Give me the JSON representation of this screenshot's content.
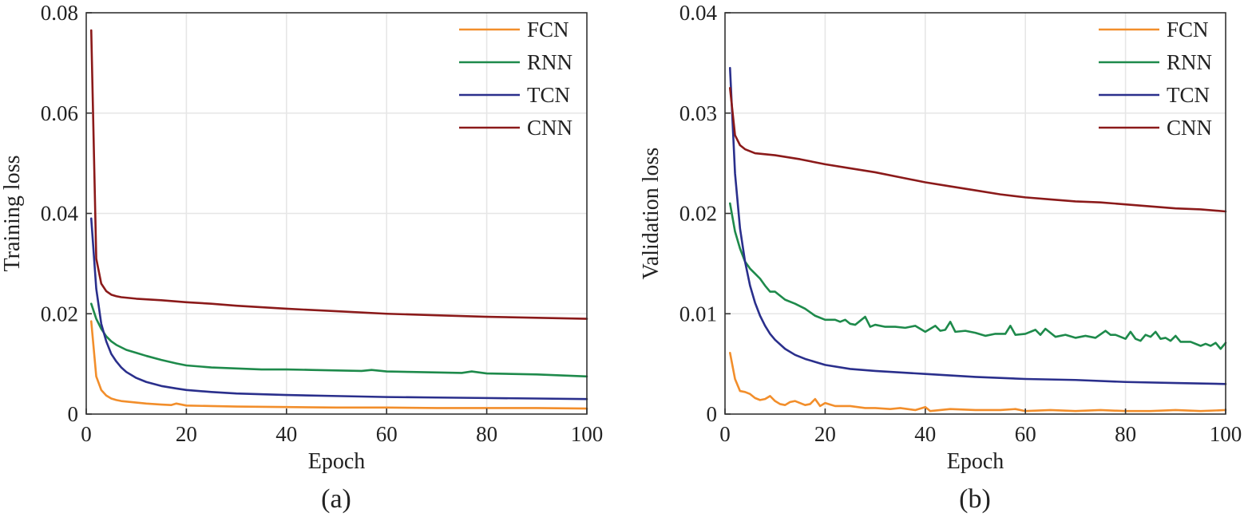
{
  "chart_data": [
    {
      "type": "line",
      "panel_label": "(a)",
      "xlabel": "Epoch",
      "ylabel": "Training loss",
      "xlim": [
        0,
        100
      ],
      "ylim": [
        0,
        0.08
      ],
      "xticks": [
        "0",
        "20",
        "40",
        "60",
        "80",
        "100"
      ],
      "yticks": [
        "0",
        "0.02",
        "0.04",
        "0.06",
        "0.08"
      ],
      "grid": true,
      "legend_position": "top-right",
      "series": [
        {
          "name": "FCN",
          "color": "#f28e2b",
          "points": [
            [
              1,
              0.0185
            ],
            [
              2,
              0.0075
            ],
            [
              3,
              0.0048
            ],
            [
              4,
              0.0037
            ],
            [
              5,
              0.0031
            ],
            [
              6,
              0.0028
            ],
            [
              7,
              0.0026
            ],
            [
              8,
              0.0025
            ],
            [
              10,
              0.0023
            ],
            [
              12,
              0.0021
            ],
            [
              15,
              0.0019
            ],
            [
              17,
              0.0018
            ],
            [
              18,
              0.0021
            ],
            [
              20,
              0.0017
            ],
            [
              25,
              0.0016
            ],
            [
              30,
              0.0015
            ],
            [
              40,
              0.0014
            ],
            [
              50,
              0.0013
            ],
            [
              60,
              0.0013
            ],
            [
              70,
              0.0012
            ],
            [
              80,
              0.0012
            ],
            [
              90,
              0.0012
            ],
            [
              100,
              0.0011
            ]
          ]
        },
        {
          "name": "RNN",
          "color": "#1e8a4b",
          "points": [
            [
              1,
              0.022
            ],
            [
              2,
              0.019
            ],
            [
              3,
              0.017
            ],
            [
              4,
              0.0155
            ],
            [
              5,
              0.0145
            ],
            [
              6,
              0.0138
            ],
            [
              7,
              0.0133
            ],
            [
              8,
              0.0128
            ],
            [
              10,
              0.0122
            ],
            [
              12,
              0.0116
            ],
            [
              15,
              0.0108
            ],
            [
              18,
              0.0101
            ],
            [
              20,
              0.0097
            ],
            [
              25,
              0.0093
            ],
            [
              30,
              0.0091
            ],
            [
              35,
              0.0089
            ],
            [
              40,
              0.0089
            ],
            [
              45,
              0.0088
            ],
            [
              50,
              0.0087
            ],
            [
              55,
              0.0086
            ],
            [
              57,
              0.0088
            ],
            [
              60,
              0.0085
            ],
            [
              65,
              0.0084
            ],
            [
              70,
              0.0083
            ],
            [
              75,
              0.0082
            ],
            [
              77,
              0.0085
            ],
            [
              80,
              0.0081
            ],
            [
              85,
              0.008
            ],
            [
              90,
              0.0079
            ],
            [
              95,
              0.0077
            ],
            [
              100,
              0.0075
            ]
          ]
        },
        {
          "name": "TCN",
          "color": "#2a2f8c",
          "points": [
            [
              1,
              0.039
            ],
            [
              2,
              0.025
            ],
            [
              3,
              0.018
            ],
            [
              4,
              0.0145
            ],
            [
              5,
              0.012
            ],
            [
              6,
              0.0105
            ],
            [
              7,
              0.0093
            ],
            [
              8,
              0.0084
            ],
            [
              10,
              0.0072
            ],
            [
              12,
              0.0064
            ],
            [
              15,
              0.0056
            ],
            [
              18,
              0.0051
            ],
            [
              20,
              0.0048
            ],
            [
              25,
              0.0044
            ],
            [
              30,
              0.0041
            ],
            [
              40,
              0.0038
            ],
            [
              50,
              0.0036
            ],
            [
              60,
              0.0034
            ],
            [
              70,
              0.0033
            ],
            [
              80,
              0.0032
            ],
            [
              90,
              0.0031
            ],
            [
              100,
              0.003
            ]
          ]
        },
        {
          "name": "CNN",
          "color": "#8b1a1a",
          "points": [
            [
              1,
              0.0765
            ],
            [
              2,
              0.031
            ],
            [
              3,
              0.026
            ],
            [
              4,
              0.0245
            ],
            [
              5,
              0.0238
            ],
            [
              6,
              0.0235
            ],
            [
              7,
              0.0233
            ],
            [
              8,
              0.0232
            ],
            [
              10,
              0.023
            ],
            [
              15,
              0.0227
            ],
            [
              20,
              0.0223
            ],
            [
              25,
              0.022
            ],
            [
              30,
              0.0216
            ],
            [
              40,
              0.021
            ],
            [
              50,
              0.0205
            ],
            [
              60,
              0.02
            ],
            [
              70,
              0.0197
            ],
            [
              80,
              0.0194
            ],
            [
              90,
              0.0192
            ],
            [
              100,
              0.019
            ]
          ]
        }
      ]
    },
    {
      "type": "line",
      "panel_label": "(b)",
      "xlabel": "Epoch",
      "ylabel": "Validation loss",
      "xlim": [
        0,
        100
      ],
      "ylim": [
        0,
        0.04
      ],
      "xticks": [
        "0",
        "20",
        "40",
        "60",
        "80",
        "100"
      ],
      "yticks": [
        "0",
        "0.01",
        "0.02",
        "0.03",
        "0.04"
      ],
      "grid": true,
      "legend_position": "top-right",
      "series": [
        {
          "name": "FCN",
          "color": "#f28e2b",
          "points": [
            [
              1,
              0.0061
            ],
            [
              2,
              0.0035
            ],
            [
              3,
              0.0023
            ],
            [
              4,
              0.0022
            ],
            [
              5,
              0.002
            ],
            [
              6,
              0.0016
            ],
            [
              7,
              0.0014
            ],
            [
              8,
              0.0015
            ],
            [
              9,
              0.0018
            ],
            [
              10,
              0.0013
            ],
            [
              11,
              0.001
            ],
            [
              12,
              0.0009
            ],
            [
              13,
              0.0012
            ],
            [
              14,
              0.0013
            ],
            [
              15,
              0.0011
            ],
            [
              16,
              0.0009
            ],
            [
              17,
              0.001
            ],
            [
              18,
              0.0015
            ],
            [
              19,
              0.0008
            ],
            [
              20,
              0.0011
            ],
            [
              22,
              0.0008
            ],
            [
              25,
              0.0008
            ],
            [
              28,
              0.0006
            ],
            [
              30,
              0.0006
            ],
            [
              33,
              0.0005
            ],
            [
              35,
              0.0006
            ],
            [
              38,
              0.0004
            ],
            [
              40,
              0.0007
            ],
            [
              41,
              0.0003
            ],
            [
              45,
              0.0005
            ],
            [
              50,
              0.0004
            ],
            [
              55,
              0.0004
            ],
            [
              58,
              0.0005
            ],
            [
              60,
              0.0003
            ],
            [
              65,
              0.0004
            ],
            [
              70,
              0.0003
            ],
            [
              75,
              0.0004
            ],
            [
              80,
              0.0003
            ],
            [
              85,
              0.0003
            ],
            [
              90,
              0.0004
            ],
            [
              95,
              0.0003
            ],
            [
              100,
              0.0004
            ]
          ]
        },
        {
          "name": "RNN",
          "color": "#1e8a4b",
          "points": [
            [
              1,
              0.021
            ],
            [
              2,
              0.0182
            ],
            [
              3,
              0.0165
            ],
            [
              4,
              0.0152
            ],
            [
              5,
              0.0145
            ],
            [
              6,
              0.014
            ],
            [
              7,
              0.0135
            ],
            [
              8,
              0.0128
            ],
            [
              9,
              0.0122
            ],
            [
              10,
              0.0122
            ],
            [
              11,
              0.0118
            ],
            [
              12,
              0.0114
            ],
            [
              14,
              0.011
            ],
            [
              16,
              0.0105
            ],
            [
              18,
              0.0098
            ],
            [
              20,
              0.0094
            ],
            [
              22,
              0.0094
            ],
            [
              23,
              0.0092
            ],
            [
              24,
              0.0094
            ],
            [
              25,
              0.009
            ],
            [
              26,
              0.0089
            ],
            [
              27,
              0.0093
            ],
            [
              28,
              0.0097
            ],
            [
              29,
              0.0087
            ],
            [
              30,
              0.0089
            ],
            [
              32,
              0.0087
            ],
            [
              34,
              0.0087
            ],
            [
              36,
              0.0086
            ],
            [
              38,
              0.0088
            ],
            [
              40,
              0.0082
            ],
            [
              42,
              0.0088
            ],
            [
              43,
              0.0083
            ],
            [
              44,
              0.0084
            ],
            [
              45,
              0.0092
            ],
            [
              46,
              0.0082
            ],
            [
              48,
              0.0083
            ],
            [
              50,
              0.0081
            ],
            [
              52,
              0.0078
            ],
            [
              54,
              0.008
            ],
            [
              56,
              0.008
            ],
            [
              57,
              0.0088
            ],
            [
              58,
              0.0079
            ],
            [
              60,
              0.008
            ],
            [
              62,
              0.0084
            ],
            [
              63,
              0.0079
            ],
            [
              64,
              0.0085
            ],
            [
              66,
              0.0077
            ],
            [
              68,
              0.0079
            ],
            [
              70,
              0.0076
            ],
            [
              72,
              0.0078
            ],
            [
              74,
              0.0076
            ],
            [
              76,
              0.0083
            ],
            [
              77,
              0.0079
            ],
            [
              78,
              0.0079
            ],
            [
              80,
              0.0075
            ],
            [
              81,
              0.0082
            ],
            [
              82,
              0.0075
            ],
            [
              83,
              0.0073
            ],
            [
              84,
              0.0079
            ],
            [
              85,
              0.0077
            ],
            [
              86,
              0.0082
            ],
            [
              87,
              0.0075
            ],
            [
              88,
              0.0076
            ],
            [
              89,
              0.0073
            ],
            [
              90,
              0.0078
            ],
            [
              91,
              0.0072
            ],
            [
              93,
              0.0072
            ],
            [
              95,
              0.0068
            ],
            [
              96,
              0.007
            ],
            [
              97,
              0.0068
            ],
            [
              98,
              0.0071
            ],
            [
              99,
              0.0065
            ],
            [
              100,
              0.0071
            ]
          ]
        },
        {
          "name": "TCN",
          "color": "#2a2f8c",
          "points": [
            [
              1,
              0.0345
            ],
            [
              2,
              0.024
            ],
            [
              3,
              0.0185
            ],
            [
              4,
              0.0152
            ],
            [
              5,
              0.0128
            ],
            [
              6,
              0.0111
            ],
            [
              7,
              0.0098
            ],
            [
              8,
              0.0088
            ],
            [
              9,
              0.008
            ],
            [
              10,
              0.0074
            ],
            [
              12,
              0.0065
            ],
            [
              14,
              0.0059
            ],
            [
              16,
              0.0055
            ],
            [
              18,
              0.0052
            ],
            [
              20,
              0.0049
            ],
            [
              25,
              0.0045
            ],
            [
              30,
              0.0043
            ],
            [
              40,
              0.004
            ],
            [
              50,
              0.0037
            ],
            [
              60,
              0.0035
            ],
            [
              70,
              0.0034
            ],
            [
              80,
              0.0032
            ],
            [
              90,
              0.0031
            ],
            [
              100,
              0.003
            ]
          ]
        },
        {
          "name": "CNN",
          "color": "#8b1a1a",
          "points": [
            [
              1,
              0.0325
            ],
            [
              2,
              0.0278
            ],
            [
              3,
              0.0268
            ],
            [
              4,
              0.0264
            ],
            [
              5,
              0.0262
            ],
            [
              6,
              0.026
            ],
            [
              8,
              0.0259
            ],
            [
              10,
              0.0258
            ],
            [
              15,
              0.0254
            ],
            [
              20,
              0.0249
            ],
            [
              25,
              0.0245
            ],
            [
              30,
              0.0241
            ],
            [
              35,
              0.0236
            ],
            [
              40,
              0.0231
            ],
            [
              45,
              0.0227
            ],
            [
              50,
              0.0223
            ],
            [
              55,
              0.0219
            ],
            [
              60,
              0.0216
            ],
            [
              65,
              0.0214
            ],
            [
              70,
              0.0212
            ],
            [
              75,
              0.0211
            ],
            [
              80,
              0.0209
            ],
            [
              85,
              0.0207
            ],
            [
              90,
              0.0205
            ],
            [
              95,
              0.0204
            ],
            [
              100,
              0.0202
            ]
          ]
        }
      ]
    }
  ]
}
